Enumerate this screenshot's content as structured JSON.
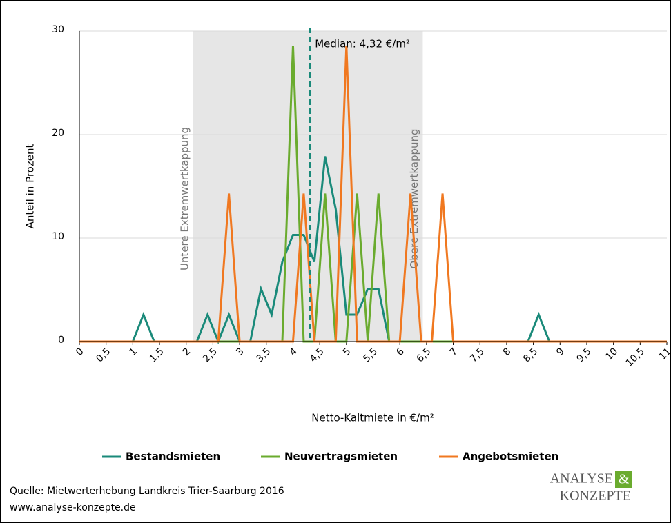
{
  "chart_data": {
    "type": "line",
    "x": [
      0,
      0.2,
      0.4,
      0.6,
      0.8,
      1,
      1.2,
      1.4,
      1.6,
      1.8,
      2,
      2.2,
      2.4,
      2.6,
      2.8,
      3,
      3.2,
      3.4,
      3.6,
      3.8,
      4,
      4.2,
      4.4,
      4.6,
      4.8,
      5,
      5.2,
      5.4,
      5.6,
      5.8,
      6,
      6.2,
      6.4,
      6.6,
      6.8,
      7,
      7.2,
      7.4,
      7.6,
      7.8,
      8,
      8.2,
      8.4,
      8.6,
      8.8,
      9,
      9.2,
      9.4,
      9.6,
      9.8,
      10,
      10.2,
      10.4,
      10.6,
      10.8,
      11
    ],
    "series": [
      {
        "name": "Bestandsmieten",
        "color": "#1a8a7a",
        "values": [
          0,
          0,
          0,
          0,
          0,
          0,
          2.6,
          0,
          0,
          0,
          0,
          0,
          2.6,
          0,
          2.6,
          0,
          0,
          5.1,
          2.6,
          7.7,
          10.3,
          10.3,
          7.7,
          17.9,
          12.8,
          2.6,
          2.6,
          5.1,
          5.1,
          0,
          0,
          0,
          0,
          0,
          0,
          0,
          0,
          0,
          0,
          0,
          0,
          0,
          0,
          2.6,
          0,
          0,
          0,
          0,
          0,
          0,
          0,
          0,
          0,
          0,
          0,
          0
        ]
      },
      {
        "name": "Neuvertragsmieten",
        "color": "#6aab2e",
        "values": [
          0,
          0,
          0,
          0,
          0,
          0,
          0,
          0,
          0,
          0,
          0,
          0,
          0,
          0,
          0,
          0,
          0,
          0,
          0,
          0,
          28.6,
          0,
          0,
          14.3,
          0,
          0,
          14.3,
          0,
          14.3,
          0,
          0,
          0,
          0,
          0,
          0,
          0,
          0,
          0,
          0,
          0,
          0,
          0,
          0,
          0,
          0,
          0,
          0,
          0,
          0,
          0,
          0,
          0,
          0,
          0,
          0,
          0
        ]
      },
      {
        "name": "Angebotsmieten",
        "color": "#f07820",
        "values": [
          0,
          0,
          0,
          0,
          0,
          0,
          0,
          0,
          0,
          0,
          0,
          0,
          0,
          0,
          14.3,
          0,
          0,
          0,
          0,
          0,
          0,
          14.3,
          0,
          0,
          0,
          28.6,
          0,
          0,
          0,
          0,
          0,
          14.3,
          0,
          0,
          14.3,
          0,
          0,
          0,
          0,
          0,
          0,
          0,
          0,
          0,
          0,
          0,
          0,
          0,
          0,
          0,
          0,
          0,
          0,
          0,
          0,
          0
        ]
      }
    ],
    "xlim": [
      0,
      11
    ],
    "ylim": [
      0,
      30
    ],
    "xticks": [
      0,
      {
        "value": 0.5,
        "label": "0,5"
      },
      1,
      {
        "value": 1.5,
        "label": "1,5"
      },
      2,
      {
        "value": 2.5,
        "label": "2,5"
      },
      3,
      {
        "value": 3.5,
        "label": "3,5"
      },
      4,
      {
        "value": 4.5,
        "label": "4,5"
      },
      5,
      {
        "value": 5.5,
        "label": "5,5"
      },
      6,
      {
        "value": 6.5,
        "label": "6,5"
      },
      7,
      {
        "value": 7.5,
        "label": "7,5"
      },
      8,
      {
        "value": 8.5,
        "label": "8,5"
      },
      9,
      {
        "value": 9.5,
        "label": "9,5"
      },
      10,
      {
        "value": 10.5,
        "label": "10,5"
      },
      11
    ],
    "yticks": [
      0,
      10,
      20,
      30
    ],
    "grid": true,
    "xlabel": "Netto-Kaltmiete in €/m²",
    "ylabel": "Anteil in Prozent",
    "shaded_band": {
      "from": 2.13,
      "to": 6.43,
      "color": "#e6e6e6"
    },
    "annotations": [
      {
        "x": 2.13,
        "label": "Untere Extremwertkappung"
      },
      {
        "x": 6.43,
        "label": "Obere Extremwertkappung"
      }
    ],
    "median": {
      "value": 4.32,
      "label": "Median: 4,32 €/m²",
      "color": "#1a8a7a"
    },
    "legend": "bottom"
  },
  "footer": {
    "source": "Quelle: Mietwerterhebung Landkreis Trier-Saarburg 2016",
    "url": "www.analyse-konzepte.de"
  },
  "logo": {
    "word1": "ANALYSE",
    "amp": "&",
    "word2": "KONZEPTE"
  }
}
